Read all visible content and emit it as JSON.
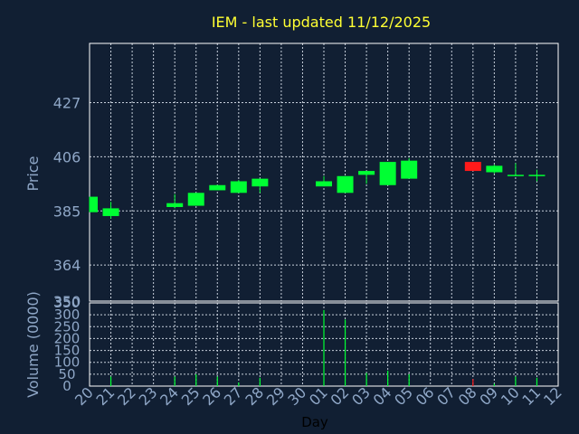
{
  "chart_data": [
    {
      "type": "candlestick",
      "title": "IEM - last updated 11/12/2025",
      "ylabel": "Price",
      "ylim": [
        350,
        450
      ],
      "yticks": [
        "427",
        "406",
        "385",
        "364",
        "350"
      ],
      "ytick_values": [
        427,
        406,
        385,
        364,
        350
      ],
      "grid": true,
      "categories": [
        "20",
        "21",
        "22",
        "23",
        "24",
        "25",
        "26",
        "27",
        "28",
        "29",
        "30",
        "01",
        "02",
        "03",
        "04",
        "05",
        "06",
        "07",
        "08",
        "09",
        "10",
        "11",
        "12"
      ],
      "up_color": "#00ff33",
      "down_color": "#ff1a1a",
      "candles": [
        {
          "x": "20",
          "open": 384.5,
          "close": 390.5,
          "high": 390.5,
          "low": 384.5,
          "dir": "up"
        },
        {
          "x": "21",
          "open": 383.0,
          "close": 386.0,
          "high": 388.5,
          "low": 382.0,
          "dir": "up"
        },
        {
          "x": "24",
          "open": 386.5,
          "close": 388.0,
          "high": 391.5,
          "low": 386.0,
          "dir": "up"
        },
        {
          "x": "25",
          "open": 387.0,
          "close": 392.0,
          "high": 392.0,
          "low": 387.0,
          "dir": "up"
        },
        {
          "x": "26",
          "open": 393.0,
          "close": 395.0,
          "high": 395.0,
          "low": 393.0,
          "dir": "up"
        },
        {
          "x": "27",
          "open": 392.0,
          "close": 396.5,
          "high": 397.0,
          "low": 392.0,
          "dir": "up"
        },
        {
          "x": "28",
          "open": 394.5,
          "close": 397.5,
          "high": 397.5,
          "low": 392.0,
          "dir": "up"
        },
        {
          "x": "01",
          "open": 394.5,
          "close": 396.5,
          "high": 398.5,
          "low": 394.5,
          "dir": "up"
        },
        {
          "x": "02",
          "open": 392.0,
          "close": 398.5,
          "high": 398.5,
          "low": 392.0,
          "dir": "up"
        },
        {
          "x": "03",
          "open": 399.0,
          "close": 400.5,
          "high": 400.5,
          "low": 395.5,
          "dir": "up"
        },
        {
          "x": "04",
          "open": 395.0,
          "close": 404.0,
          "high": 404.0,
          "low": 395.0,
          "dir": "up"
        },
        {
          "x": "05",
          "open": 397.5,
          "close": 404.5,
          "high": 405.5,
          "low": 397.5,
          "dir": "up"
        },
        {
          "x": "08",
          "open": 404.0,
          "close": 400.5,
          "high": 404.0,
          "low": 400.5,
          "dir": "down"
        },
        {
          "x": "09",
          "open": 400.0,
          "close": 402.5,
          "high": 403.0,
          "low": 399.5,
          "dir": "up"
        },
        {
          "x": "10",
          "open": 398.5,
          "close": 399.0,
          "high": 403.5,
          "low": 398.5,
          "dir": "up"
        },
        {
          "x": "11",
          "open": 398.5,
          "close": 399.0,
          "high": 401.0,
          "low": 396.5,
          "dir": "up"
        }
      ]
    },
    {
      "type": "bar",
      "ylabel": "Volume (0000)",
      "xlabel": "Day",
      "ylim": [
        0,
        350
      ],
      "yticks": [
        "350",
        "300",
        "250",
        "200",
        "150",
        "100",
        "50",
        "0"
      ],
      "ytick_values": [
        350,
        300,
        250,
        200,
        150,
        100,
        50,
        0
      ],
      "categories": [
        "20",
        "21",
        "22",
        "23",
        "24",
        "25",
        "26",
        "27",
        "28",
        "29",
        "30",
        "01",
        "02",
        "03",
        "04",
        "05",
        "06",
        "07",
        "08",
        "09",
        "10",
        "11",
        "12"
      ],
      "volumes": [
        {
          "x": "20",
          "value": 0,
          "color": "#00ff33"
        },
        {
          "x": "21",
          "value": 40,
          "color": "#00ff33"
        },
        {
          "x": "24",
          "value": 40,
          "color": "#00ff33"
        },
        {
          "x": "25",
          "value": 50,
          "color": "#00ff33"
        },
        {
          "x": "26",
          "value": 40,
          "color": "#00ff33"
        },
        {
          "x": "27",
          "value": 15,
          "color": "#00ff33"
        },
        {
          "x": "28",
          "value": 35,
          "color": "#00ff33"
        },
        {
          "x": "01",
          "value": 320,
          "color": "#00ff33"
        },
        {
          "x": "02",
          "value": 280,
          "color": "#00ff33"
        },
        {
          "x": "03",
          "value": 55,
          "color": "#00ff33"
        },
        {
          "x": "04",
          "value": 65,
          "color": "#00ff33"
        },
        {
          "x": "05",
          "value": 50,
          "color": "#00ff33"
        },
        {
          "x": "08",
          "value": 30,
          "color": "#ff1a1a"
        },
        {
          "x": "09",
          "value": 10,
          "color": "#00ff33"
        },
        {
          "x": "10",
          "value": 40,
          "color": "#00ff33"
        },
        {
          "x": "11",
          "value": 35,
          "color": "#00ff33"
        }
      ]
    }
  ]
}
